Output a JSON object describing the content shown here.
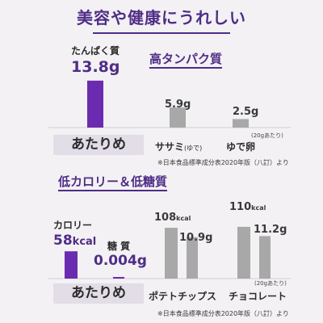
{
  "header": {
    "title": "美容や健康にうれしい"
  },
  "protein": {
    "heading": "高タンパク質",
    "metric_label": "たんぱく質",
    "featured_value": "13.8g",
    "featured_name": "あたりめ",
    "others": [
      {
        "name": "ササミ",
        "suffix": "(ゆで)",
        "value": "5.9g"
      },
      {
        "name": "ゆで卵",
        "suffix": "",
        "value": "2.5g"
      }
    ],
    "note": "(20gあたり)",
    "source": "※日本食品標準成分表2020年版（八訂）より"
  },
  "calorie": {
    "heading": "低カロリー＆低糖質",
    "calorie_label": "カロリー",
    "calorie_value": "58",
    "calorie_unit": "kcal",
    "sugar_label": "糖 質",
    "sugar_value": "0.004g",
    "featured_name": "あたりめ",
    "others": [
      {
        "name": "ポテトチップス",
        "kcal": "108",
        "sugar": "10.9g"
      },
      {
        "name": "チョコレート",
        "kcal": "110",
        "sugar": "11.2g"
      }
    ],
    "unit_kcal": "kcal",
    "note": "(20gあたり)",
    "source": "※日本食品標準成分表2020年版（八訂）より"
  },
  "colors": {
    "purple": "#6b2bb0",
    "purple_dark": "#4f2d86",
    "gray": "#a8a8a8",
    "band": "#e2dde6"
  },
  "chart_data": [
    {
      "type": "bar",
      "title": "高タンパク質",
      "ylabel": "たんぱく質",
      "categories": [
        "あたりめ",
        "ササミ(ゆで)",
        "ゆで卵"
      ],
      "values": [
        13.8,
        5.9,
        2.5
      ],
      "unit": "g",
      "ylim": [
        0,
        14
      ]
    },
    {
      "type": "bar",
      "title": "低カロリー＆低糖質",
      "categories": [
        "あたりめ",
        "ポテトチップス",
        "チョコレート"
      ],
      "series": [
        {
          "name": "カロリー",
          "values": [
            58,
            108,
            110
          ],
          "unit": "kcal"
        },
        {
          "name": "糖 質",
          "values": [
            0.004,
            10.9,
            11.2
          ],
          "unit": "g"
        }
      ],
      "ylim": [
        0,
        115
      ]
    }
  ]
}
